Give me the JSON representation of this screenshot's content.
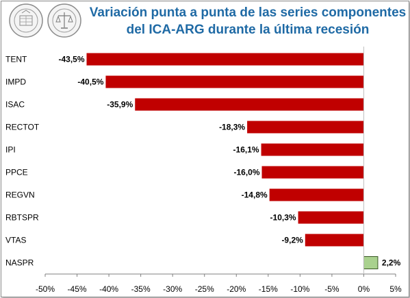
{
  "header": {
    "title_line1": "Variación punta a punta de las series componentes",
    "title_line2": "del ICA-ARG durante la última recesión"
  },
  "logos": [
    {
      "name": "bolsa-de-comercio-seal-1",
      "text": "BOLSA DE COMERCIO DE ROSARIO"
    },
    {
      "name": "bolsa-de-comercio-seal-2",
      "text": "BOLSA DE COMERCIO DE ROSARIO"
    }
  ],
  "colors": {
    "negative_bar": "#c00000",
    "positive_bar": "#a9d18e",
    "positive_bar_border": "#385723",
    "title": "#1f6aa5",
    "axis": "#7f7f7f"
  },
  "chart_data": {
    "type": "bar",
    "orientation": "horizontal",
    "categories": [
      "TENT",
      "IMPD",
      "ISAC",
      "RECTOT",
      "IPI",
      "PPCE",
      "REGVN",
      "RBTSPR",
      "VTAS",
      "NASPR"
    ],
    "values": [
      -43.5,
      -40.5,
      -35.9,
      -18.3,
      -16.1,
      -16.0,
      -14.8,
      -10.3,
      -9.2,
      2.2
    ],
    "value_labels": [
      "-43,5%",
      "-40,5%",
      "-35,9%",
      "-18,3%",
      "-16,1%",
      "-16,0%",
      "-14,8%",
      "-10,3%",
      "-9,2%",
      "2,2%"
    ],
    "xlim": [
      -50,
      5
    ],
    "xticks": [
      -50,
      -45,
      -40,
      -35,
      -30,
      -25,
      -20,
      -15,
      -10,
      -5,
      0,
      5
    ],
    "xtick_labels": [
      "-50%",
      "-45%",
      "-40%",
      "-35%",
      "-30%",
      "-25%",
      "-20%",
      "-15%",
      "-10%",
      "-5%",
      "0%",
      "5%"
    ],
    "grid": false,
    "legend": "none"
  }
}
